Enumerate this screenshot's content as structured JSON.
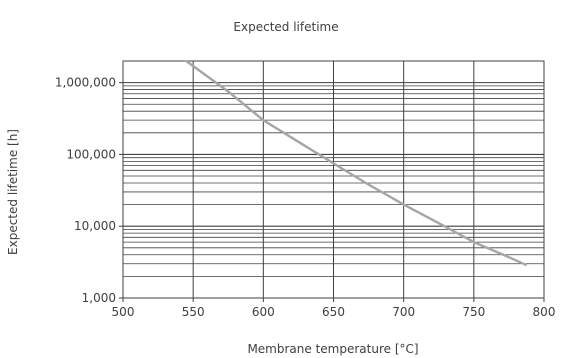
{
  "chart_data": {
    "type": "line",
    "title": "Expected lifetime",
    "xlabel": "Membrane temperature [°C]",
    "ylabel": "Expected lifetime [h]",
    "xlim": [
      500,
      800
    ],
    "ylim": [
      1000,
      2000000
    ],
    "y_scale": "log",
    "grid": true,
    "legend": "none",
    "x_ticks": [
      500,
      550,
      600,
      650,
      700,
      750,
      800
    ],
    "x_tick_labels": [
      "500",
      "550",
      "600",
      "650",
      "700",
      "750",
      "800"
    ],
    "y_ticks": [
      1000,
      10000,
      100000,
      1000000
    ],
    "y_tick_labels": [
      "1,000",
      "10,000",
      "100,000",
      "1,000,000"
    ],
    "series": [
      {
        "color": "#a6a6a6",
        "x": [
          545,
          575,
          600,
          625,
          650,
          675,
          700,
          725,
          750,
          775,
          787
        ],
        "y": [
          2000000,
          750000,
          300000,
          150000,
          75000,
          38000,
          20000,
          11000,
          6000,
          3700,
          2900
        ]
      }
    ]
  }
}
